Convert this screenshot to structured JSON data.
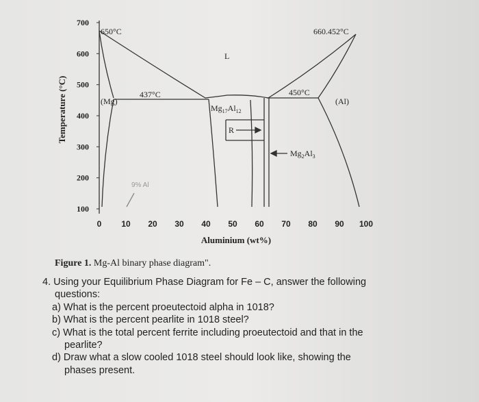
{
  "diagram": {
    "y_label": "Temperature (°C)",
    "y_ticks": [
      700,
      600,
      500,
      400,
      300,
      200,
      100
    ],
    "x_ticks": [
      0,
      10,
      20,
      30,
      40,
      50,
      60,
      70,
      80,
      90,
      100
    ],
    "x_label": "Aluminium (wt%)",
    "annotations": {
      "mg_melt": "650°C",
      "al_melt": "660.452°C",
      "liquid": "L",
      "eutectic_left": "437°C",
      "eutectic_right": "450°C",
      "mg_phase": "(Mg)",
      "al_phase": "(Al)",
      "r_phase": "R",
      "note": "9% Al"
    },
    "mg17al12": [
      "Mg",
      "17",
      "Al",
      "12"
    ],
    "mg2al3": [
      "Mg",
      "2",
      "Al",
      "3"
    ]
  },
  "caption": {
    "label": "Figure 1.",
    "text": "Mg-Al binary phase diagram\"."
  },
  "question": {
    "intro": "4. Using your Equilibrium Phase Diagram for Fe – C, answer the following questions:",
    "items": [
      "a) What is the percent proeutectoid alpha in 1018?",
      "b) What is the percent pearlite in 1018 steel?",
      "c) What is the total percent ferrite including proeutectoid and that in the pearlite?",
      "d) Draw what a slow cooled 1018 steel should look like, showing the phases present."
    ]
  }
}
